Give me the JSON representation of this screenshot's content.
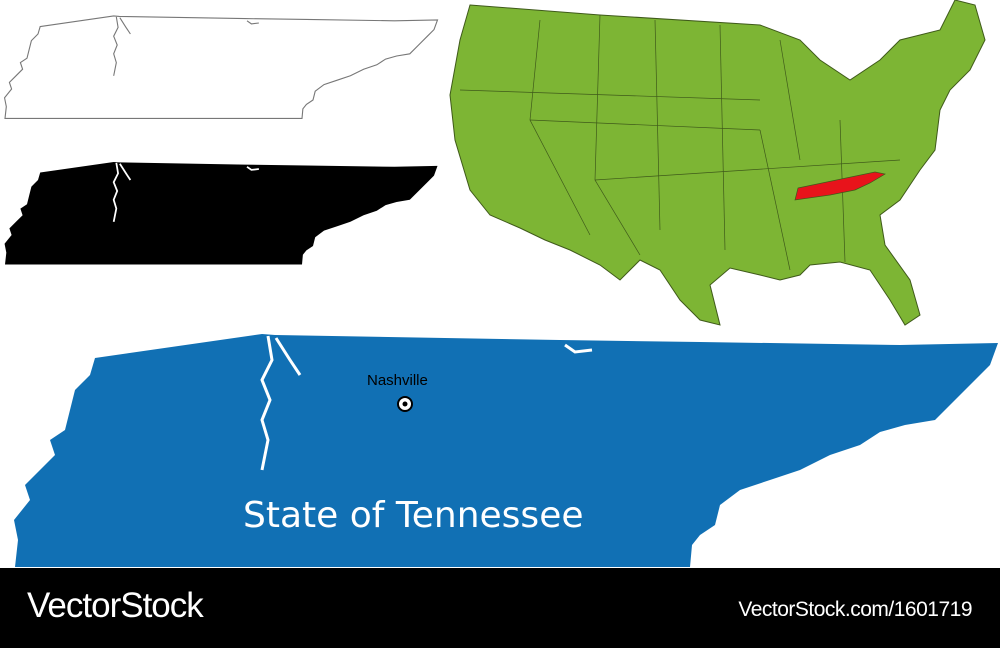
{
  "map": {
    "title": "State of Tennessee",
    "capital": "Nashville",
    "colors": {
      "state_fill": "#1170b4",
      "us_fill": "#7db534",
      "highlight": "#e8131b",
      "silhouette": "#000000",
      "outline": "#888888"
    }
  },
  "footer": {
    "brand": "VectorStock",
    "url": "VectorStock.com/1601719"
  }
}
